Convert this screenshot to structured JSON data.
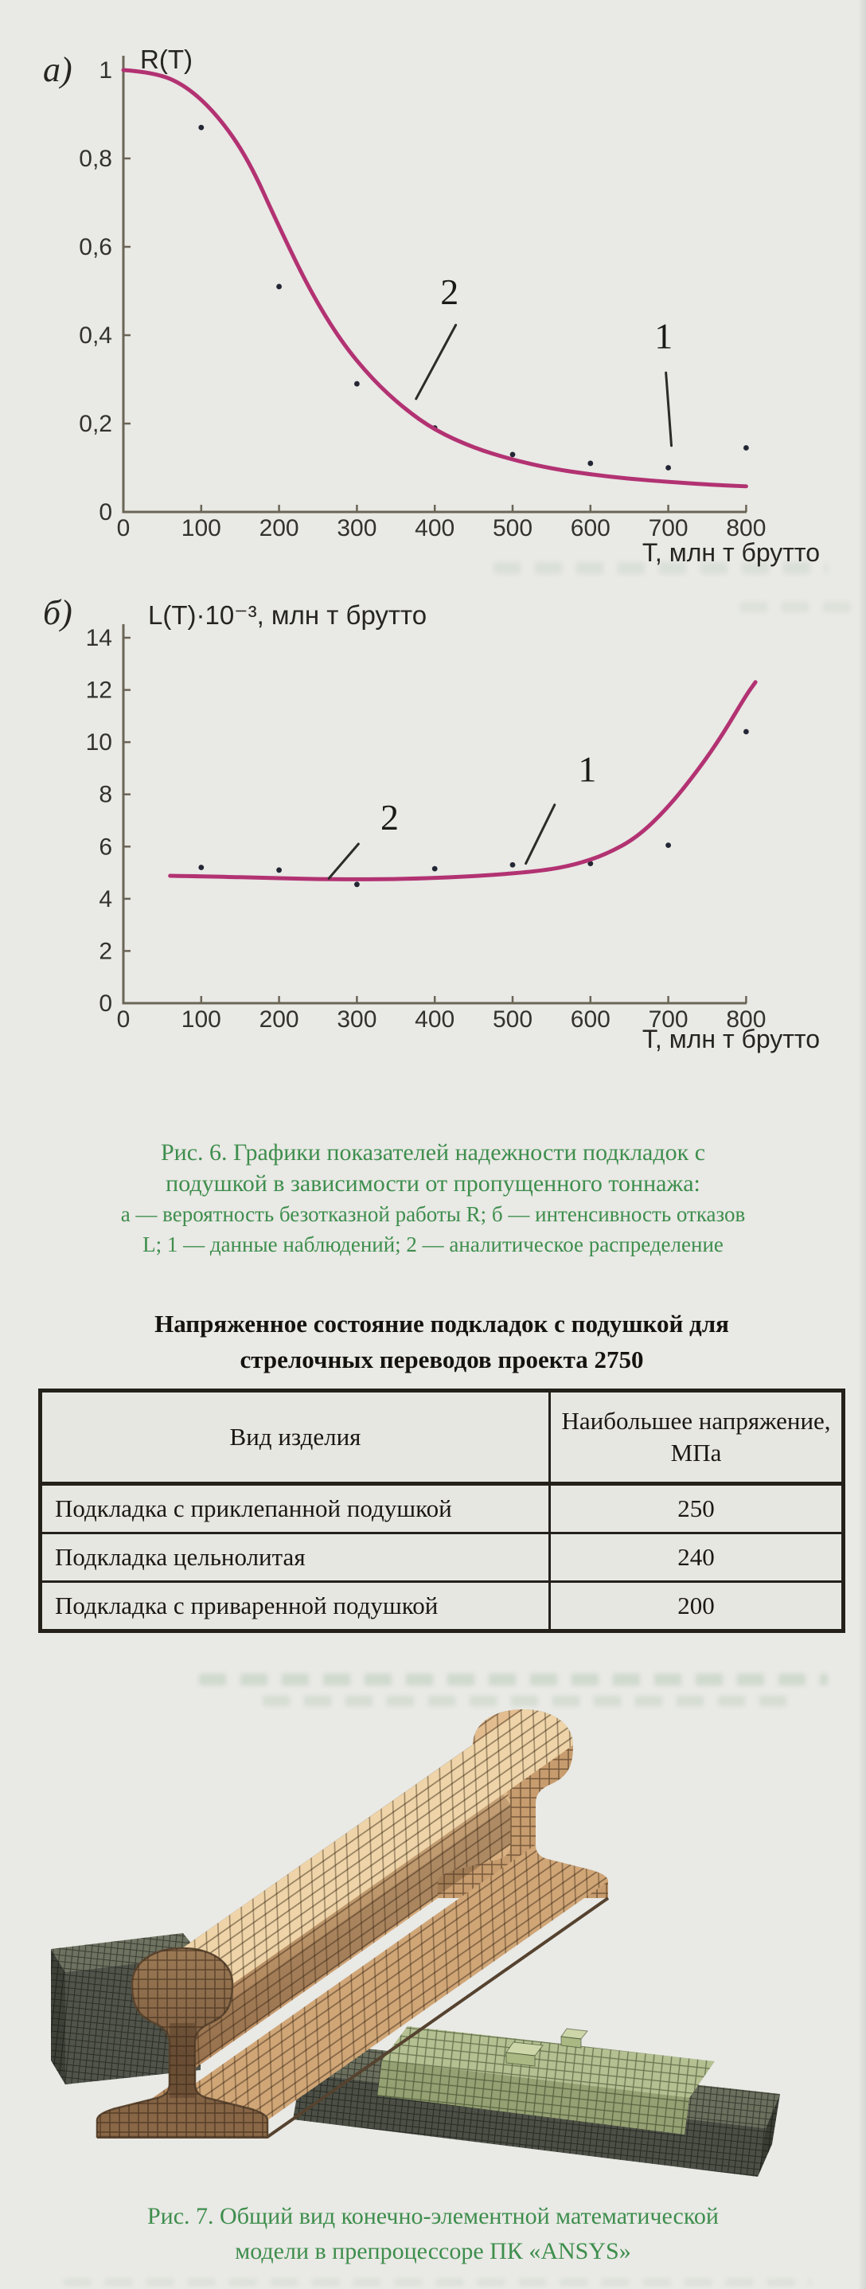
{
  "paper": {
    "background": "#e9e9e5"
  },
  "colors": {
    "curve": "#b23272",
    "axis": "#6b6557",
    "tick_text": "#33322e",
    "caption_green": "#3e8e4d",
    "point": "#232634",
    "table_text": "#1b1813"
  },
  "figure6": {
    "panel_a_label": "а)",
    "panel_b_label": "б)",
    "caption_lines": [
      "Рис. 6. Графики показателей надежности подкладок с",
      "подушкой в зависимости от пропущенного тоннажа:",
      "а — вероятность безотказной работы R; б — интенсивность отказов",
      "L; 1 — данные наблюдений; 2 — аналитическое распределение"
    ]
  },
  "chart_data": [
    {
      "id": "a",
      "type": "line",
      "title": "R(T)",
      "xlabel": "Т, млн т брутто",
      "xlim": [
        0,
        800
      ],
      "ylim": [
        0,
        1
      ],
      "grid": false,
      "xticks": [
        0,
        100,
        200,
        300,
        400,
        500,
        600,
        700,
        800
      ],
      "yticks": [
        {
          "v": 0,
          "label": "0"
        },
        {
          "v": 0.2,
          "label": "0,2"
        },
        {
          "v": 0.4,
          "label": "0,4"
        },
        {
          "v": 0.6,
          "label": "0,6"
        },
        {
          "v": 0.8,
          "label": "0,8"
        },
        {
          "v": 1,
          "label": "1"
        }
      ],
      "series": [
        {
          "name": "1 — данные наблюдений",
          "kind": "scatter",
          "points": [
            [
              100,
              0.87
            ],
            [
              200,
              0.51
            ],
            [
              300,
              0.29
            ],
            [
              400,
              0.19
            ],
            [
              500,
              0.13
            ],
            [
              600,
              0.11
            ],
            [
              700,
              0.1
            ],
            [
              800,
              0.145
            ]
          ]
        },
        {
          "name": "2 — аналитическое распределение",
          "kind": "line",
          "points": [
            [
              0,
              1.0
            ],
            [
              40,
              0.995
            ],
            [
              80,
              0.965
            ],
            [
              120,
              0.9
            ],
            [
              160,
              0.8
            ],
            [
              200,
              0.645
            ],
            [
              240,
              0.5
            ],
            [
              280,
              0.385
            ],
            [
              320,
              0.3
            ],
            [
              360,
              0.235
            ],
            [
              400,
              0.185
            ],
            [
              450,
              0.145
            ],
            [
              500,
              0.118
            ],
            [
              550,
              0.098
            ],
            [
              600,
              0.085
            ],
            [
              650,
              0.075
            ],
            [
              700,
              0.068
            ],
            [
              750,
              0.062
            ],
            [
              800,
              0.058
            ]
          ]
        }
      ],
      "annotations": [
        {
          "text": "2",
          "x": 419,
          "y": 0.47,
          "line": [
            [
              427,
              0.423
            ],
            [
              376,
              0.256
            ]
          ]
        },
        {
          "text": "1",
          "x": 694,
          "y": 0.37,
          "line": [
            [
              697,
              0.315
            ],
            [
              704,
              0.15
            ]
          ]
        }
      ]
    },
    {
      "id": "b",
      "type": "line",
      "title": "L(T)·10⁻³, млн т брутто",
      "xlabel": "Т, млн т брутто",
      "xlim": [
        0,
        800
      ],
      "ylim": [
        0,
        14
      ],
      "grid": false,
      "xticks": [
        0,
        100,
        200,
        300,
        400,
        500,
        600,
        700,
        800
      ],
      "yticks": [
        {
          "v": 0,
          "label": "0"
        },
        {
          "v": 2,
          "label": "2"
        },
        {
          "v": 4,
          "label": "4"
        },
        {
          "v": 6,
          "label": "6"
        },
        {
          "v": 8,
          "label": "8"
        },
        {
          "v": 10,
          "label": "10"
        },
        {
          "v": 12,
          "label": "12"
        },
        {
          "v": 14,
          "label": "14"
        }
      ],
      "series": [
        {
          "name": "1 — данные наблюдений",
          "kind": "scatter",
          "points": [
            [
              100,
              5.2
            ],
            [
              200,
              5.1
            ],
            [
              300,
              4.55
            ],
            [
              400,
              5.15
            ],
            [
              500,
              5.3
            ],
            [
              600,
              5.35
            ],
            [
              700,
              6.05
            ],
            [
              800,
              10.4
            ]
          ]
        },
        {
          "name": "2 — аналитическое распределение",
          "kind": "line",
          "points": [
            [
              60,
              4.88
            ],
            [
              120,
              4.85
            ],
            [
              180,
              4.8
            ],
            [
              240,
              4.76
            ],
            [
              300,
              4.74
            ],
            [
              360,
              4.76
            ],
            [
              420,
              4.82
            ],
            [
              480,
              4.92
            ],
            [
              540,
              5.08
            ],
            [
              580,
              5.3
            ],
            [
              620,
              5.7
            ],
            [
              660,
              6.35
            ],
            [
              700,
              7.5
            ],
            [
              740,
              9.0
            ],
            [
              770,
              10.3
            ],
            [
              800,
              11.8
            ],
            [
              812,
              12.3
            ]
          ]
        }
      ],
      "annotations": [
        {
          "text": "1",
          "x": 596,
          "y": 8.5,
          "line": [
            [
              554,
              7.6
            ],
            [
              517,
              5.35
            ]
          ]
        },
        {
          "text": "2",
          "x": 342,
          "y": 6.65,
          "line": [
            [
              302,
              6.1
            ],
            [
              264,
              4.78
            ]
          ]
        }
      ]
    }
  ],
  "table": {
    "title_lines": [
      "Напряженное состояние подкладок с подушкой для",
      "стрелочных переводов проекта 2750"
    ],
    "headers": [
      "Вид изделия",
      "Наибольшее напряжение, МПа"
    ],
    "rows": [
      {
        "product": "Подкладка с приклепанной подушкой",
        "stress": "250"
      },
      {
        "product": "Подкладка цельнолитая",
        "stress": "240"
      },
      {
        "product": "Подкладка с приваренной подушкой",
        "stress": "200"
      }
    ]
  },
  "figure7": {
    "caption_lines": [
      "Рис. 7. Общий вид конечно-элементной математической",
      "модели в препроцессоре ПК «ANSYS»"
    ]
  }
}
